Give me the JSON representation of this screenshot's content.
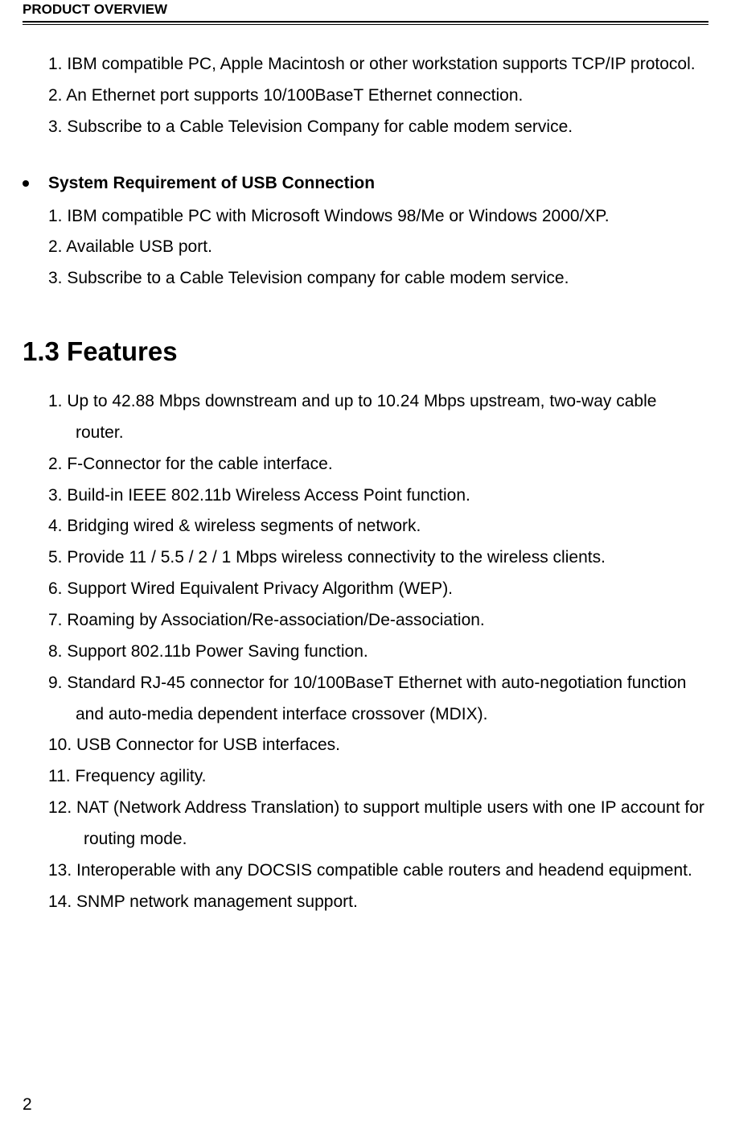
{
  "header": {
    "title": "PRODUCT OVERVIEW"
  },
  "ethernet_requirements": {
    "items": [
      "1. IBM compatible PC, Apple Macintosh or other workstation supports TCP/IP protocol.",
      "2. An Ethernet port supports 10/100BaseT Ethernet connection.",
      "3. Subscribe to a Cable Television Company for cable modem service."
    ]
  },
  "usb_section": {
    "heading": "System Requirement of USB Connection",
    "items": [
      "1. IBM compatible PC with Microsoft Windows 98/Me or Windows 2000/XP.",
      "2. Available USB port.",
      "3. Subscribe to a Cable Television company for cable modem service."
    ]
  },
  "features_section": {
    "heading": "1.3 Features",
    "items": [
      "1.  Up to 42.88 Mbps downstream and up to 10.24 Mbps upstream, two-way cable router.",
      "2.  F-Connector for the cable interface.",
      "3.  Build-in IEEE 802.11b Wireless Access Point function.",
      "4.  Bridging wired & wireless segments of network.",
      "5.  Provide 11 / 5.5 / 2 / 1 Mbps wireless connectivity to the wireless clients.",
      "6.  Support Wired Equivalent Privacy Algorithm (WEP).",
      "7.  Roaming by Association/Re-association/De-association.",
      "8.  Support 802.11b Power Saving function.",
      "9.  Standard RJ-45 connector for 10/100BaseT Ethernet with auto-negotiation function and auto-media dependent interface crossover (MDIX).",
      "10. USB Connector for USB interfaces.",
      "11. Frequency agility.",
      "12. NAT (Network Address Translation) to support multiple users with one IP account for routing mode.",
      "13. Interoperable with any DOCSIS compatible cable routers and headend equipment.",
      "14. SNMP network management support."
    ]
  },
  "page_number": "2"
}
